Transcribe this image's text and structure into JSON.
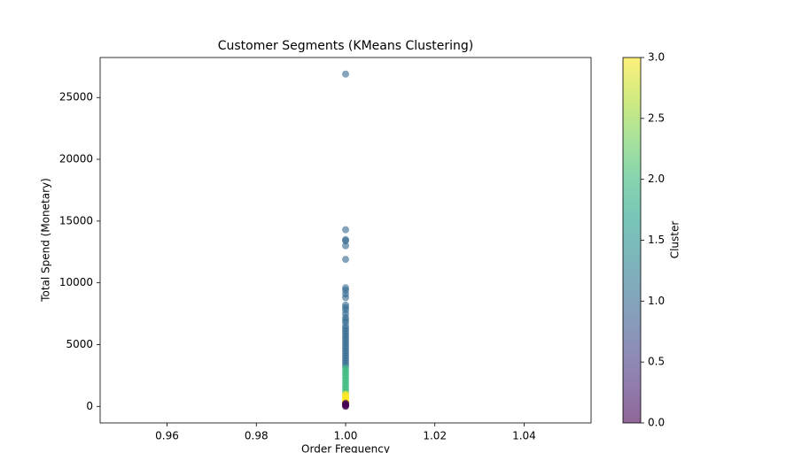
{
  "chart_data": {
    "type": "scatter",
    "title": "Customer Segments (KMeans Clustering)",
    "x_label": "Order Frequency",
    "y_label": "Total Spend (Monetary)",
    "colorbar_label": "Cluster",
    "colormap": "viridis",
    "alpha": 0.6,
    "xlim": [
      0.945,
      1.055
    ],
    "ylim": [
      -1340,
      28240
    ],
    "xticks": [
      0.96,
      0.98,
      {
        "value": 1,
        "label": "1.00"
      },
      1.02,
      1.04
    ],
    "yticks": [
      0,
      5000,
      10000,
      15000,
      20000,
      25000
    ],
    "clim": [
      0,
      3
    ],
    "cticks": [
      {
        "value": 0,
        "label": "0.0"
      },
      {
        "value": 0.5,
        "label": "0.5"
      },
      {
        "value": 1,
        "label": "1.0"
      },
      {
        "value": 1.5,
        "label": "1.5"
      },
      {
        "value": 2,
        "label": "2.0"
      },
      {
        "value": 2.5,
        "label": "2.5"
      },
      {
        "value": 3,
        "label": "3.0"
      }
    ],
    "series": [
      {
        "x": [
          1,
          1,
          1,
          1,
          1,
          1,
          1,
          1,
          1,
          1,
          1,
          1,
          1,
          1,
          1,
          1,
          1,
          1,
          1,
          1,
          1,
          1,
          1,
          1,
          1,
          1,
          1,
          1,
          1,
          1,
          1,
          1,
          1,
          1,
          1,
          1,
          1,
          1,
          1,
          1,
          1,
          1,
          1,
          1,
          1,
          1,
          1,
          1,
          1,
          1,
          1,
          1,
          1,
          1,
          1,
          1,
          1,
          1,
          1
        ],
        "y": [
          26900,
          14300,
          13500,
          13400,
          13000,
          11900,
          9600,
          9400,
          9100,
          8800,
          8200,
          8000,
          7800,
          7500,
          7200,
          7000,
          6800,
          6500,
          6300,
          6100,
          5900,
          5700,
          5500,
          5300,
          5100,
          4900,
          4700,
          4500,
          4300,
          4100,
          3900,
          3700,
          3500,
          3300,
          3100,
          2900,
          2700,
          2500,
          2300,
          2100,
          1900,
          1700,
          1500,
          1300,
          1100,
          1000,
          900,
          800,
          700,
          600,
          500,
          400,
          300,
          250,
          200,
          150,
          100,
          50,
          0
        ],
        "cluster": [
          1,
          1,
          1,
          1,
          1,
          1,
          1,
          1,
          1,
          1,
          1,
          1,
          1,
          1,
          1,
          1,
          1,
          1,
          1,
          1,
          1,
          1,
          1,
          1,
          1,
          1,
          1,
          1,
          1,
          1,
          1,
          1,
          1,
          1,
          2,
          2,
          2,
          2,
          2,
          2,
          2,
          2,
          2,
          2,
          2,
          3,
          3,
          3,
          3,
          3,
          3,
          3,
          3,
          0,
          0,
          0,
          0,
          0,
          0
        ]
      }
    ]
  }
}
